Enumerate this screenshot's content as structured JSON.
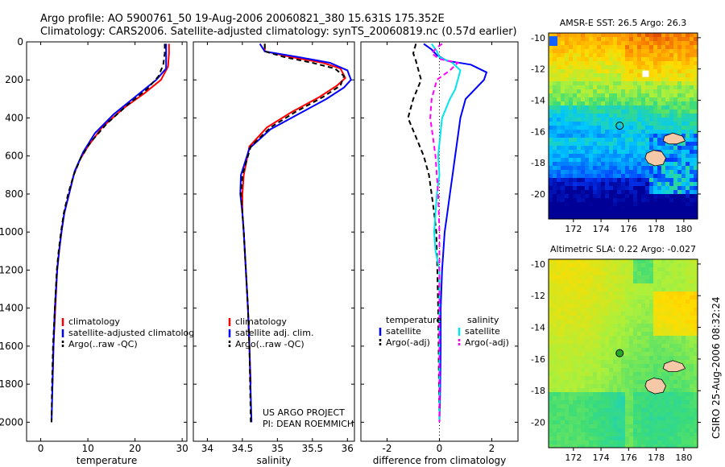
{
  "header": {
    "line1": "Argo profile: AO 5900761_50 19-Aug-2006 20060821_380 15.631S 175.352E",
    "line2": "Climatology: CARS2006. Satellite-adjusted climatology: synTS_20060819.nc (0.57d earlier)"
  },
  "side_text": "CSIRO 25-Aug-2006 08:32:24",
  "chart_data": [
    {
      "id": "temperature",
      "type": "line",
      "xlabel": "temperature",
      "ylabel": "",
      "xlim": [
        -3,
        31
      ],
      "ylim": [
        2100,
        0
      ],
      "xticks": [
        0,
        10,
        20,
        30
      ],
      "yticks": [
        0,
        200,
        400,
        600,
        800,
        1000,
        1200,
        1400,
        1600,
        1800,
        2000
      ],
      "legend": [
        "climatology",
        "satellite-adjusted climatology",
        "Argo(..raw -QC)"
      ],
      "series": [
        {
          "name": "climatology",
          "color": "#ff0000",
          "style": "solid",
          "x": [
            27.2,
            27.2,
            27.0,
            25.5,
            22.0,
            17.5,
            13.0,
            10.0,
            8.3,
            7.0,
            6.0,
            5.0,
            4.4,
            3.9,
            3.5,
            3.1,
            2.7,
            2.5
          ],
          "y": [
            10,
            60,
            130,
            200,
            270,
            350,
            450,
            550,
            620,
            700,
            800,
            900,
            1000,
            1100,
            1200,
            1400,
            1600,
            1800
          ]
        },
        {
          "name": "satellite-adjusted climatology",
          "color": "#0000ff",
          "style": "solid",
          "x": [
            26.6,
            26.6,
            26.6,
            26.6,
            24.5,
            20.5,
            15.5,
            11.5,
            9.0,
            7.2,
            6.0,
            5.0,
            4.4,
            3.9,
            3.5,
            3.0,
            2.7,
            2.5,
            2.3
          ],
          "y": [
            10,
            60,
            100,
            140,
            200,
            280,
            380,
            480,
            580,
            680,
            800,
            900,
            1000,
            1100,
            1200,
            1400,
            1600,
            1800,
            2000
          ]
        },
        {
          "name": "Argo(..raw -QC)",
          "color": "#000000",
          "style": "dash",
          "x": [
            26.3,
            26.3,
            26.0,
            25.0,
            22.5,
            18.5,
            14.0,
            10.5,
            8.5,
            7.0,
            5.8,
            4.9,
            4.3,
            3.8,
            3.4,
            3.0,
            2.6,
            2.4,
            2.3
          ],
          "y": [
            10,
            60,
            120,
            180,
            250,
            330,
            430,
            530,
            610,
            700,
            800,
            900,
            1000,
            1100,
            1200,
            1400,
            1600,
            1800,
            2000
          ]
        }
      ]
    },
    {
      "id": "salinity",
      "type": "line",
      "xlabel": "salinity",
      "ylabel": "",
      "xlim": [
        33.8,
        36.1
      ],
      "ylim": [
        2100,
        0
      ],
      "xticks": [
        34,
        34.5,
        35,
        35.5,
        36
      ],
      "yticks": [
        0,
        200,
        400,
        600,
        800,
        1000,
        1200,
        1400,
        1600,
        1800,
        2000
      ],
      "legend": [
        "climatology",
        "satellite adj. clim.",
        "Argo(..raw -QC)"
      ],
      "annotation": [
        "US ARGO PROJECT",
        "PI: DEAN ROEMMICH"
      ],
      "series": [
        {
          "name": "climatology",
          "color": "#ff0000",
          "style": "solid",
          "x": [
            34.82,
            34.82,
            35.2,
            35.65,
            35.9,
            35.97,
            35.85,
            35.6,
            35.2,
            34.85,
            34.6,
            34.52,
            34.5,
            34.5,
            34.52,
            34.55,
            34.58,
            34.6,
            34.62
          ],
          "y": [
            10,
            50,
            80,
            110,
            140,
            190,
            230,
            290,
            370,
            450,
            550,
            700,
            800,
            900,
            1000,
            1200,
            1400,
            1600,
            1800
          ]
        },
        {
          "name": "satellite adj. clim.",
          "color": "#0000ff",
          "style": "solid",
          "x": [
            34.75,
            34.82,
            35.3,
            35.75,
            36.0,
            36.05,
            35.95,
            35.7,
            35.3,
            34.9,
            34.6,
            34.48,
            34.47,
            34.5,
            34.52,
            34.55,
            34.58,
            34.6,
            34.63
          ],
          "y": [
            10,
            50,
            80,
            110,
            150,
            200,
            240,
            300,
            380,
            460,
            560,
            700,
            800,
            900,
            1000,
            1200,
            1400,
            1600,
            2000
          ]
        },
        {
          "name": "Argo(..raw -QC)",
          "color": "#000000",
          "style": "dash",
          "x": [
            34.82,
            34.82,
            35.1,
            35.5,
            35.82,
            35.95,
            35.9,
            35.65,
            35.25,
            34.9,
            34.62,
            34.5,
            34.48,
            34.5,
            34.52,
            34.55,
            34.58,
            34.6,
            34.62
          ],
          "y": [
            10,
            50,
            80,
            110,
            140,
            180,
            230,
            290,
            370,
            450,
            550,
            700,
            800,
            900,
            1000,
            1200,
            1400,
            1600,
            2000
          ]
        }
      ]
    },
    {
      "id": "difference",
      "type": "line",
      "xlabel": "difference from climatology",
      "ylabel": "",
      "xlim": [
        -3,
        3
      ],
      "ylim": [
        2100,
        0
      ],
      "xticks": [
        -2,
        0,
        2
      ],
      "yticks": [
        0,
        200,
        400,
        600,
        800,
        1000,
        1200,
        1400,
        1600,
        1800,
        2000
      ],
      "legend_titles": [
        "temperature",
        "salinity"
      ],
      "legend": [
        "satellite",
        "Argo(-adj)",
        "satellite",
        "Argo(-adj)"
      ],
      "series": [
        {
          "name": "temperature satellite",
          "color": "#0000ff",
          "style": "solid",
          "x": [
            -0.6,
            -0.3,
            -0.1,
            0.3,
            1.2,
            1.8,
            1.7,
            1.0,
            0.8,
            0.7,
            0.6,
            0.5,
            0.4,
            0.3,
            0.2,
            0.15,
            0.1,
            0.05,
            0.05,
            0.03,
            0.02,
            0.0
          ],
          "y": [
            10,
            40,
            70,
            100,
            120,
            160,
            200,
            300,
            400,
            500,
            600,
            700,
            800,
            900,
            1000,
            1100,
            1200,
            1400,
            1600,
            1800,
            1900,
            2000
          ]
        },
        {
          "name": "temperature Argo(-adj)",
          "color": "#000000",
          "style": "dash",
          "x": [
            -0.9,
            -1.0,
            -0.9,
            -0.8,
            -0.7,
            -1.0,
            -1.2,
            -0.9,
            -0.6,
            -0.4,
            -0.3,
            -0.2,
            -0.12,
            -0.08,
            -0.05,
            -0.03,
            -0.02,
            -0.01,
            0.0
          ],
          "y": [
            10,
            60,
            100,
            150,
            200,
            300,
            400,
            500,
            600,
            700,
            800,
            900,
            1000,
            1200,
            1400,
            1600,
            1800,
            1900,
            2000
          ]
        },
        {
          "name": "salinity satellite",
          "color": "#00e5ee",
          "style": "solid",
          "x": [
            -0.3,
            -0.1,
            0.0,
            0.5,
            0.8,
            0.7,
            0.6,
            0.4,
            0.1,
            -0.05,
            0.0,
            -0.1,
            -0.2,
            -0.15,
            0.0,
            0.0,
            0.0
          ],
          "y": [
            10,
            50,
            80,
            110,
            150,
            200,
            250,
            300,
            400,
            600,
            700,
            800,
            1000,
            1100,
            1200,
            1400,
            2000
          ]
        },
        {
          "name": "salinity Argo(-adj)",
          "color": "#ff00ff",
          "style": "dash",
          "x": [
            0.1,
            -0.1,
            -0.3,
            0.0,
            0.7,
            0.4,
            -0.1,
            -0.3,
            -0.35,
            -0.25,
            -0.15,
            -0.05,
            0.0,
            0.0,
            0.0
          ],
          "y": [
            10,
            30,
            60,
            90,
            110,
            150,
            200,
            300,
            400,
            500,
            600,
            800,
            1000,
            1400,
            2000
          ]
        }
      ]
    }
  ],
  "maps": [
    {
      "id": "sst-map",
      "title": "AMSR-E SST: 26.5 Argo: 26.3",
      "xticks": [
        "172",
        "174",
        "176",
        "178",
        "180"
      ],
      "yticks": [
        "-10",
        "-12",
        "-14",
        "-16",
        "-18",
        "-20"
      ],
      "xlim": [
        170.2,
        181
      ],
      "ylim": [
        -21.6,
        -9.7
      ],
      "marker_lon": 175.352,
      "marker_lat": -15.631
    },
    {
      "id": "sla-map",
      "title": "Altimetric SLA: 0.22 Argo: -0.027",
      "xticks": [
        "172",
        "174",
        "176",
        "178",
        "180"
      ],
      "yticks": [
        "-10",
        "-12",
        "-14",
        "-16",
        "-18",
        "-20"
      ],
      "xlim": [
        170.2,
        181
      ],
      "ylim": [
        -21.6,
        -9.7
      ],
      "marker_lon": 175.352,
      "marker_lat": -15.631
    }
  ],
  "colors": {
    "climatology": "#ff0000",
    "satellite": "#0000ff",
    "argo": "#000000",
    "salinity_satellite": "#00e5ee",
    "salinity_argo": "#ff00ff"
  }
}
